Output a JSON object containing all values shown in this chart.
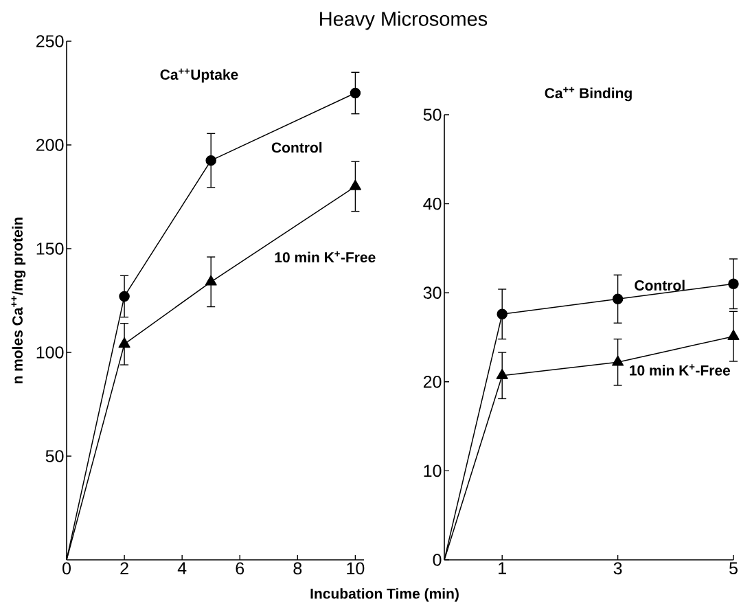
{
  "chart_data": [
    {
      "type": "line",
      "title": "Heavy Microsomes",
      "subtitle": "Ca$^{++}$Uptake",
      "xlabel": "Incubation Time (min)",
      "ylabel": "n moles Ca$^{++}$/mg protein",
      "x": [
        0,
        2,
        5,
        10
      ],
      "xlim": [
        0,
        10.3
      ],
      "ylim": [
        0,
        250
      ],
      "xticks": [
        0,
        2,
        4,
        6,
        8,
        10
      ],
      "yticks": [
        50,
        100,
        150,
        200,
        250
      ],
      "grid": false,
      "legend": false,
      "line_style": "solid",
      "series": [
        {
          "name": "Control",
          "color": "#000000",
          "marker": "circle",
          "values": [
            0,
            127,
            192.5,
            225
          ],
          "errors": [
            null,
            10,
            13,
            10
          ]
        },
        {
          "name": "10 min K$^{+}$-Free",
          "color": "#000000",
          "marker": "triangle",
          "values": [
            0,
            104,
            134,
            180
          ],
          "errors": [
            null,
            10,
            12,
            12
          ]
        }
      ]
    },
    {
      "type": "line",
      "subtitle": "Ca$^{++}$ Binding",
      "x": [
        0,
        1,
        3,
        5
      ],
      "xlim": [
        0,
        5
      ],
      "ylim": [
        0,
        50
      ],
      "xticks": [
        1,
        3,
        5
      ],
      "yticks": [
        0,
        10,
        20,
        30,
        40,
        50
      ],
      "grid": false,
      "legend": false,
      "line_style": "solid",
      "series": [
        {
          "name": "Control",
          "color": "#000000",
          "marker": "circle",
          "values": [
            0,
            27.6,
            29.3,
            31.0
          ],
          "errors": [
            null,
            2.8,
            2.7,
            2.8
          ]
        },
        {
          "name": "10 min K$^{+}$-Free",
          "color": "#000000",
          "marker": "triangle",
          "values": [
            0,
            20.7,
            22.2,
            25.1
          ],
          "errors": [
            null,
            2.6,
            2.6,
            2.8
          ]
        }
      ]
    }
  ]
}
